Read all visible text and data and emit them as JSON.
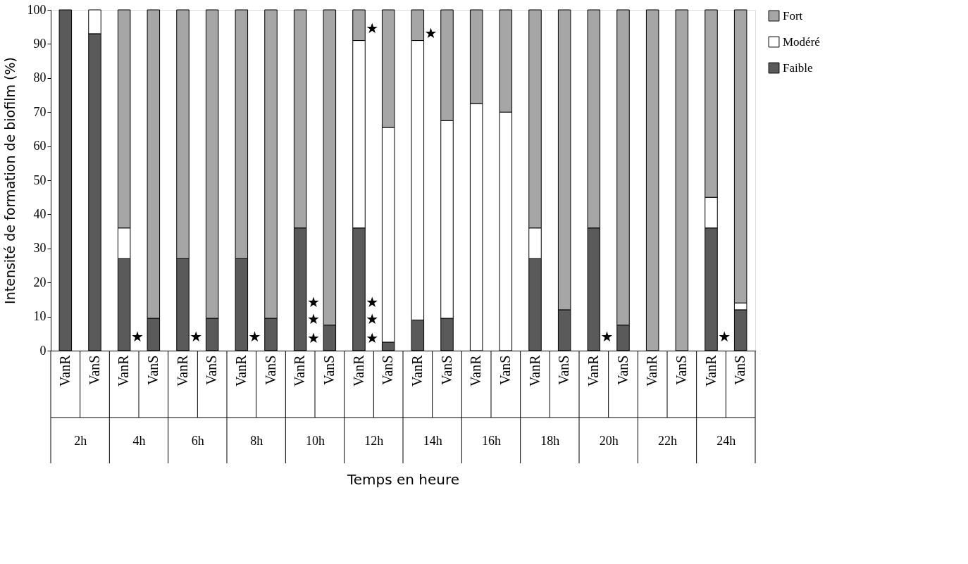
{
  "chart_data": {
    "type": "bar",
    "stacked": true,
    "ylabel": "Intensité de formation de biofilm (%)",
    "categories": [
      "VanR",
      "VanS",
      "VanR",
      "VanS",
      "VanR",
      "VanS",
      "VanR",
      "VanS",
      "VanR",
      "VanS",
      "VanR",
      "VanS",
      "VanR",
      "VanS",
      "VanR",
      "VanS",
      "VanR",
      "VanS",
      "VanR",
      "VanS",
      "VanR",
      "VanS",
      "VanR",
      "VanS"
    ],
    "series": [
      {
        "name": "Faible",
        "color": "#5a5a5a",
        "values": [
          100,
          93,
          27,
          9.5,
          27,
          9.5,
          27,
          9.5,
          36,
          7.5,
          36,
          2.5,
          9,
          9.5,
          0,
          0,
          27,
          12,
          36,
          7.5,
          0,
          0,
          36,
          12
        ]
      },
      {
        "name": "Modéré",
        "color": "#ffffff",
        "values": [
          0,
          7,
          9,
          0,
          0,
          0,
          0,
          0,
          0,
          0,
          55,
          63,
          82,
          58,
          72.5,
          70,
          9,
          0,
          0,
          0,
          0,
          0,
          9,
          2
        ]
      },
      {
        "name": "Fort",
        "color": "#a6a6a6",
        "values": [
          0,
          0,
          64,
          90.5,
          73,
          90.5,
          73,
          90.5,
          64,
          92.5,
          9,
          34.5,
          9,
          32.5,
          27.5,
          30,
          64,
          88,
          64,
          92.5,
          100,
          100,
          55,
          86
        ]
      }
    ],
    "ylim": [
      0,
      100
    ],
    "yticks": [
      0,
      10,
      20,
      30,
      40,
      50,
      60,
      70,
      80,
      90,
      100
    ],
    "grid": false,
    "legend": "right",
    "annotations": [
      "2h",
      "4h",
      "6h",
      "8h",
      "10h",
      "12h",
      "14h",
      "16h",
      "18h",
      "20h",
      "22h",
      "24h",
      "★",
      "★",
      "★",
      "★",
      "★",
      "★",
      "★",
      "★",
      "★",
      "★",
      "★",
      "★",
      "★",
      "Temps en heure"
    ]
  }
}
